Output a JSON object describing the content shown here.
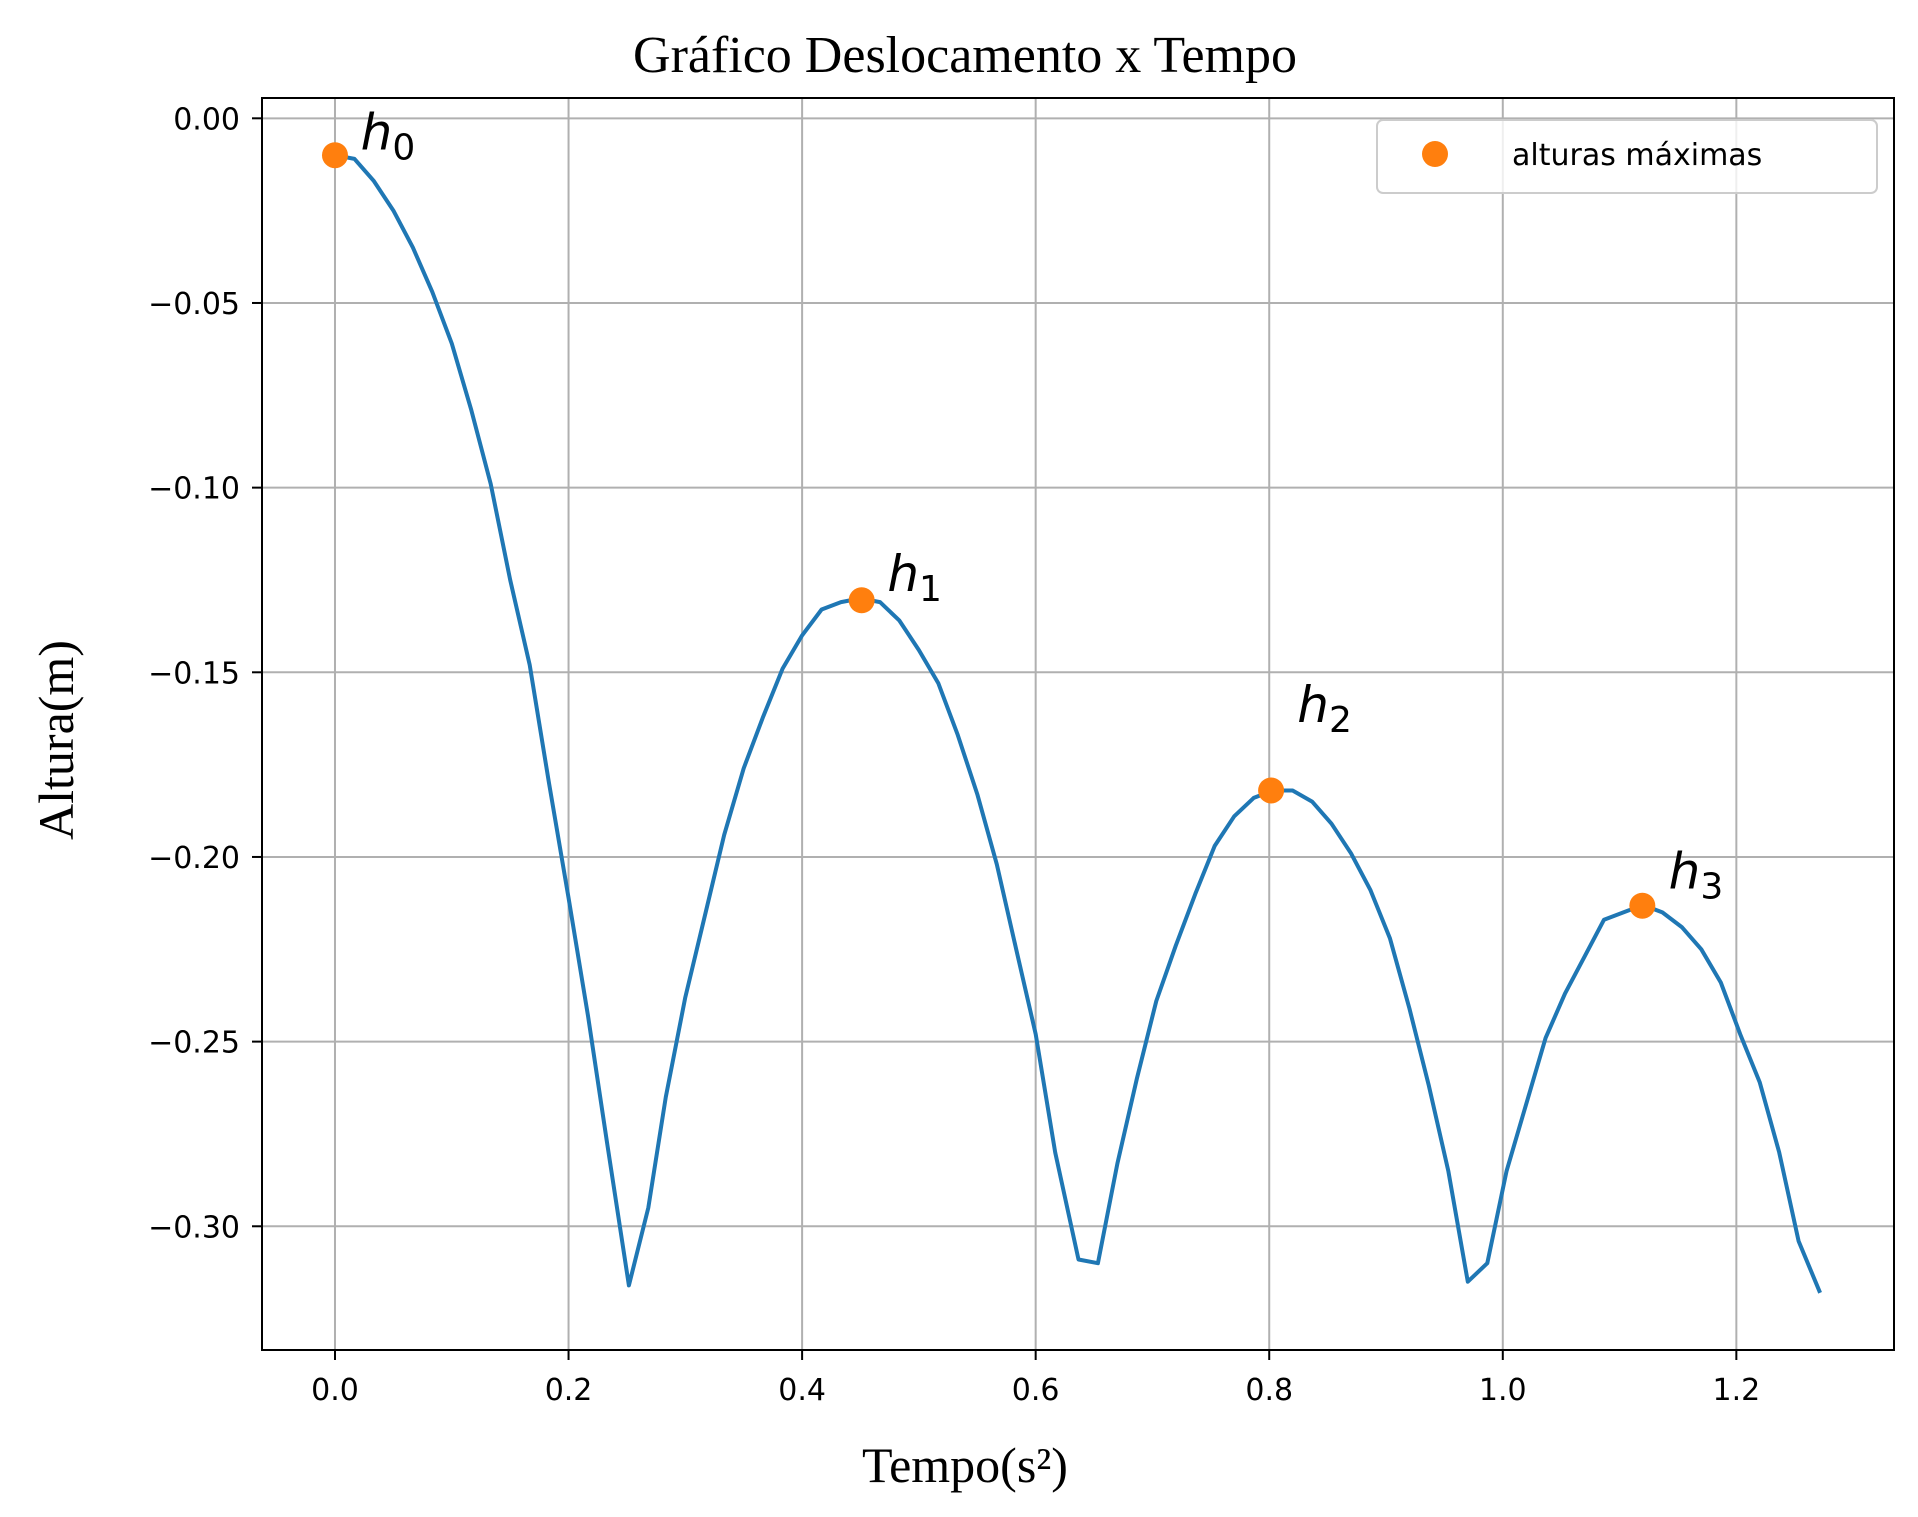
{
  "chart_data": {
    "type": "line",
    "title": "Gráfico Deslocamento x Tempo",
    "xlabel": "Tempo(s²)",
    "ylabel": "Altura(m)",
    "xlim": [
      -0.0625,
      1.335
    ],
    "ylim": [
      -0.3335,
      0.0055
    ],
    "xticks": [
      0.0,
      0.2,
      0.4,
      0.6,
      0.8,
      1.0,
      1.2
    ],
    "xtick_labels": [
      "0.0",
      "0.2",
      "0.4",
      "0.6",
      "0.8",
      "1.0",
      "1.2"
    ],
    "yticks": [
      0.0,
      -0.05,
      -0.1,
      -0.15,
      -0.2,
      -0.25,
      -0.3
    ],
    "ytick_labels": [
      "0.00",
      "−0.05",
      "−0.10",
      "−0.15",
      "−0.20",
      "−0.25",
      "−0.30"
    ],
    "grid": true,
    "legend_position": "top-right",
    "colors": {
      "line": "#1f77b4",
      "markers": "#ff7f0e",
      "grid": "#b0b0b0"
    },
    "series": [
      {
        "kind": "line",
        "x": [
          0.0,
          0.0167,
          0.0333,
          0.05,
          0.0667,
          0.0833,
          0.1,
          0.1167,
          0.1333,
          0.15,
          0.1667,
          0.1833,
          0.2,
          0.2167,
          0.2333,
          0.2517,
          0.2683,
          0.2833,
          0.3,
          0.3167,
          0.3333,
          0.35,
          0.3667,
          0.3833,
          0.4,
          0.4167,
          0.4333,
          0.45,
          0.4667,
          0.4833,
          0.5,
          0.5167,
          0.5333,
          0.55,
          0.5667,
          0.5833,
          0.6,
          0.6167,
          0.6367,
          0.6533,
          0.67,
          0.6867,
          0.7033,
          0.72,
          0.7367,
          0.7533,
          0.77,
          0.7867,
          0.8033,
          0.82,
          0.8367,
          0.8533,
          0.87,
          0.8867,
          0.9033,
          0.92,
          0.9367,
          0.9533,
          0.97,
          0.9867,
          1.0033,
          1.02,
          1.0367,
          1.0533,
          1.07,
          1.0867,
          1.1033,
          1.12,
          1.1367,
          1.1533,
          1.17,
          1.1867,
          1.2033,
          1.22,
          1.2367,
          1.2533,
          1.2717
        ],
        "y": [
          -0.01,
          -0.011,
          -0.017,
          -0.025,
          -0.035,
          -0.047,
          -0.061,
          -0.079,
          -0.099,
          -0.125,
          -0.148,
          -0.18,
          -0.211,
          -0.243,
          -0.278,
          -0.316,
          -0.295,
          -0.265,
          -0.238,
          -0.216,
          -0.194,
          -0.176,
          -0.162,
          -0.149,
          -0.14,
          -0.133,
          -0.131,
          -0.13,
          -0.131,
          -0.136,
          -0.144,
          -0.153,
          -0.167,
          -0.183,
          -0.202,
          -0.225,
          -0.248,
          -0.28,
          -0.309,
          -0.31,
          -0.283,
          -0.26,
          -0.239,
          -0.224,
          -0.21,
          -0.197,
          -0.189,
          -0.184,
          -0.182,
          -0.182,
          -0.185,
          -0.191,
          -0.199,
          -0.209,
          -0.222,
          -0.241,
          -0.262,
          -0.285,
          -0.315,
          -0.31,
          -0.285,
          -0.267,
          -0.249,
          -0.237,
          -0.227,
          -0.217,
          -0.215,
          -0.213,
          -0.215,
          -0.219,
          -0.225,
          -0.234,
          -0.248,
          -0.261,
          -0.28,
          -0.304,
          -0.318
        ]
      },
      {
        "kind": "markers",
        "name": "alturas máximas",
        "x": [
          0.0,
          0.451,
          0.8016,
          1.1195
        ],
        "y": [
          -0.01,
          -0.1305,
          -0.182,
          -0.2132
        ]
      }
    ],
    "annotations": [
      {
        "base": "h",
        "sub": "0",
        "x": 0.022,
        "y": -0.0085
      },
      {
        "base": "h",
        "sub": "1",
        "x": 0.473,
        "y": -0.128
      },
      {
        "base": "h",
        "sub": "2",
        "x": 0.824,
        "y": -0.1635
      },
      {
        "base": "h",
        "sub": "3",
        "x": 1.142,
        "y": -0.2085
      }
    ]
  }
}
